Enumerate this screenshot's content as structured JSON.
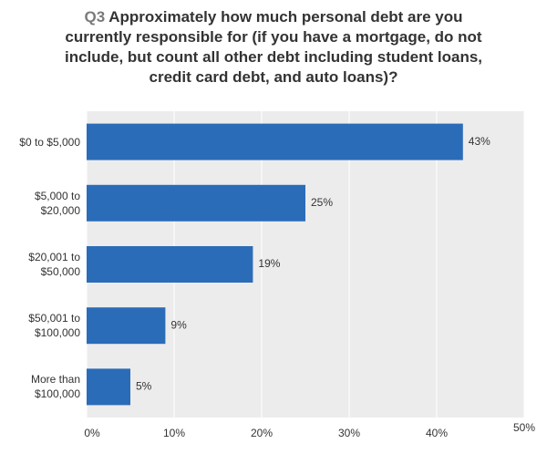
{
  "chart_data": {
    "type": "barh",
    "title_prefix": "Q3",
    "title": "Approximately how much personal debt are you currently responsible for (if you have a mortgage, do not include, but count all other debt including student loans, credit card debt, and auto loans)?",
    "categories": [
      "$0 to $5,000",
      "$5,000 to $20,000",
      "$20,001 to $50,000",
      "$50,001 to $100,000",
      "More than $100,000"
    ],
    "values": [
      43,
      25,
      19,
      9,
      5
    ],
    "value_labels": [
      "43%",
      "25%",
      "19%",
      "9%",
      "5%"
    ],
    "color": "#2b6cb8",
    "xlim": [
      0,
      50
    ],
    "xticks": [
      {
        "value": 0,
        "label": "0%"
      },
      {
        "value": 10,
        "label": "10%"
      },
      {
        "value": 20,
        "label": "20%"
      },
      {
        "value": 30,
        "label": "30%"
      },
      {
        "value": 40,
        "label": "40%"
      },
      {
        "value": 50,
        "label": "50%"
      }
    ],
    "grid": true
  }
}
